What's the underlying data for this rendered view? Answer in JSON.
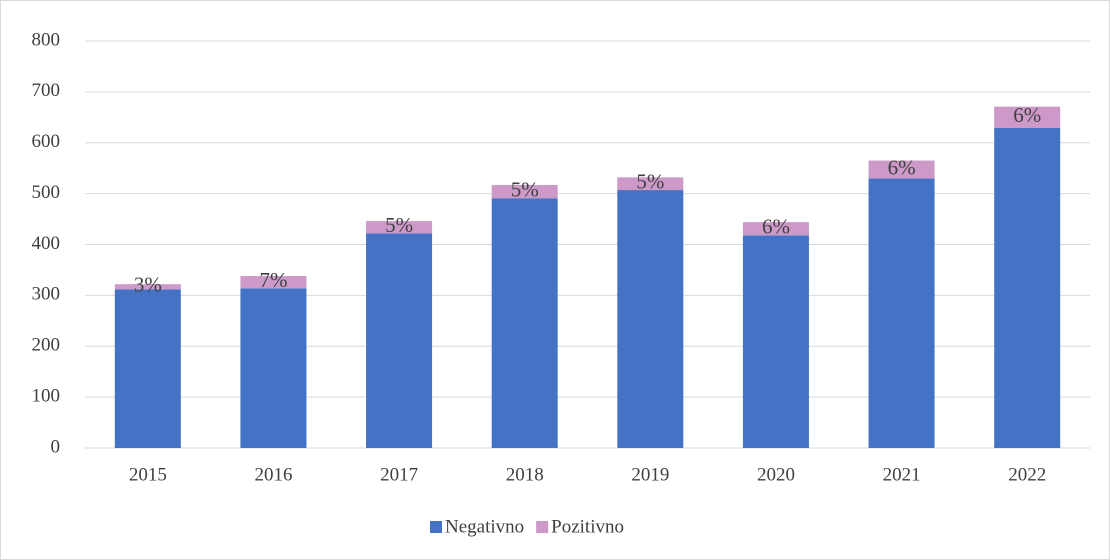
{
  "chart_data": {
    "type": "stacked_bar",
    "categories": [
      "2015",
      "2016",
      "2017",
      "2018",
      "2019",
      "2020",
      "2021",
      "2022"
    ],
    "series": [
      {
        "name": "Negativno",
        "color": "#4472c4",
        "values": [
          312,
          314,
          422,
          491,
          507,
          418,
          530,
          629
        ]
      },
      {
        "name": "Pozitivno",
        "color": "#cc99c9",
        "values": [
          10,
          24,
          24,
          26,
          25,
          26,
          35,
          42
        ],
        "labels": [
          "3%",
          "7%",
          "5%",
          "5%",
          "5%",
          "6%",
          "6%",
          "6%"
        ]
      }
    ],
    "ylim": [
      0,
      800
    ],
    "yticks": [
      0,
      100,
      200,
      300,
      400,
      500,
      600,
      700,
      800
    ],
    "grid": true,
    "legend": "bottom"
  }
}
